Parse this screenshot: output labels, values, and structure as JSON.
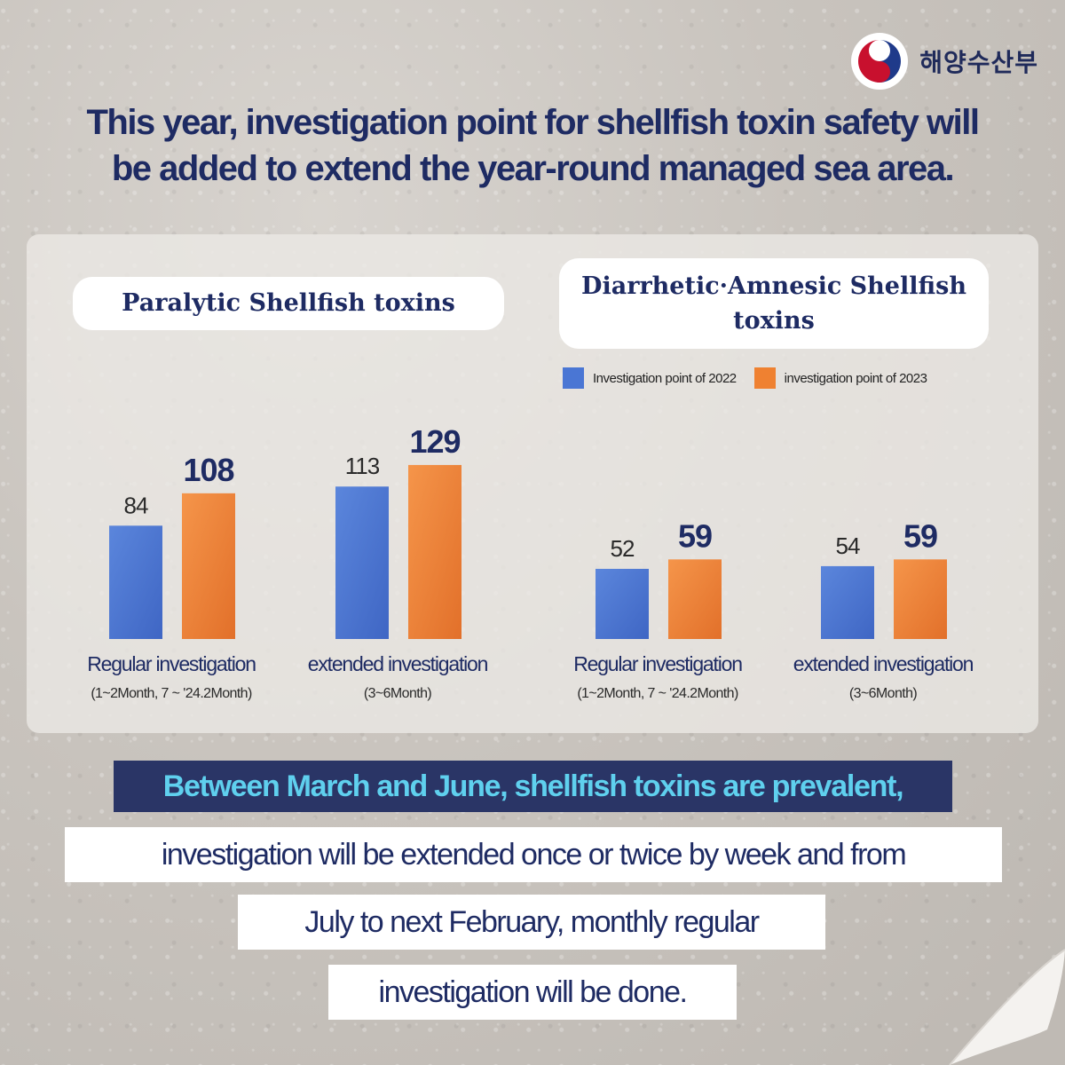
{
  "logo": {
    "text": "해양수산부",
    "icon": "taegeuk-emblem-icon"
  },
  "headline": {
    "line1": "This year,  investigation point for shellfish toxin safety will",
    "line2": "be added to extend  the year-round managed sea area."
  },
  "colors": {
    "series_2022": "#4a76d4",
    "series_2023": "#ef8131",
    "navy": "#1e2b63",
    "callout_bg": "#2a3566",
    "callout_text": "#5fd0ee"
  },
  "chart_data": [
    {
      "type": "bar",
      "title": "Paralytic Shellfish toxins",
      "categories": [
        "Regular investigation",
        "extended investigation"
      ],
      "category_sublabels": [
        "(1~2Month, 7 ~ '24.2Month)",
        "(3~6Month)"
      ],
      "series": [
        {
          "name": "Investigation point of 2022",
          "values": [
            84,
            113
          ]
        },
        {
          "name": "investigation point of 2023",
          "values": [
            108,
            129
          ]
        }
      ]
    },
    {
      "type": "bar",
      "title": "Diarrhetic·Amnesic Shellfish toxins",
      "title_lines": [
        "Diarrhetic·Amnesic Shellfish",
        "toxins"
      ],
      "categories": [
        "Regular investigation",
        "extended investigation"
      ],
      "category_sublabels": [
        "(1~2Month, 7 ~ '24.2Month)",
        "(3~6Month)"
      ],
      "series": [
        {
          "name": "Investigation point of 2022",
          "values": [
            52,
            54
          ]
        },
        {
          "name": "investigation point of 2023",
          "values": [
            59,
            59
          ]
        }
      ]
    }
  ],
  "legend": {
    "item_2022": "Investigation point of 2022",
    "item_2023": "investigation point of 2023",
    "placement": "top-right"
  },
  "callouts": {
    "highlight": "Between March and June, shellfish toxins are prevalent,",
    "line1": "investigation will be extended once or  twice by week and from",
    "line2": "July to next February, monthly regular",
    "line3": "investigation will be done."
  }
}
